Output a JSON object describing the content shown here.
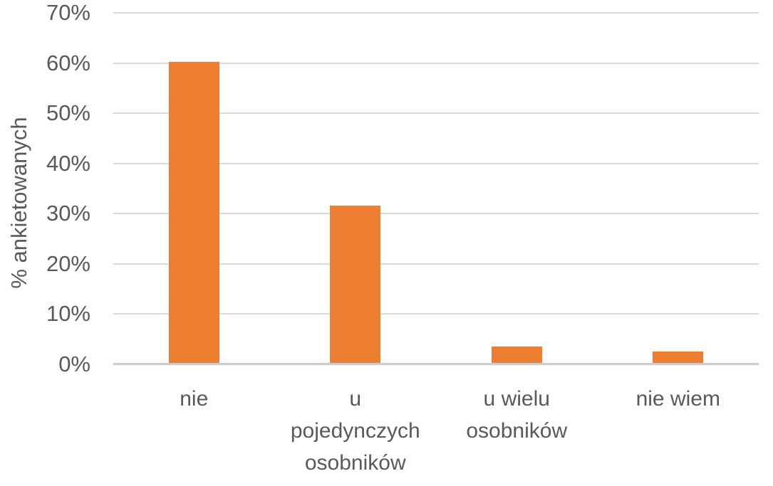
{
  "chart_data": {
    "type": "bar",
    "title": "",
    "xlabel": "",
    "ylabel": "% ankietowanych",
    "categories": [
      "nie",
      "u pojedynczych osobników",
      "u wielu osobników",
      "nie wiem"
    ],
    "category_lines": [
      [
        "nie"
      ],
      [
        "u",
        "pojedynczych",
        "osobników"
      ],
      [
        "u wielu",
        "osobników"
      ],
      [
        "nie wiem"
      ]
    ],
    "values": [
      60,
      31.3,
      3.2,
      2.3
    ],
    "value_unit": "%",
    "ylim": [
      0,
      70
    ],
    "ytick_step": 10,
    "yticks": [
      "0%",
      "10%",
      "20%",
      "30%",
      "40%",
      "50%",
      "60%",
      "70%"
    ],
    "grid": "horizontal",
    "legend_position": "none",
    "colors": {
      "bar": "#ED7D31",
      "gridline": "#D9D9D9",
      "axis_line": "#CBCBCB",
      "text": "#595959",
      "background": "#FFFFFF"
    }
  }
}
